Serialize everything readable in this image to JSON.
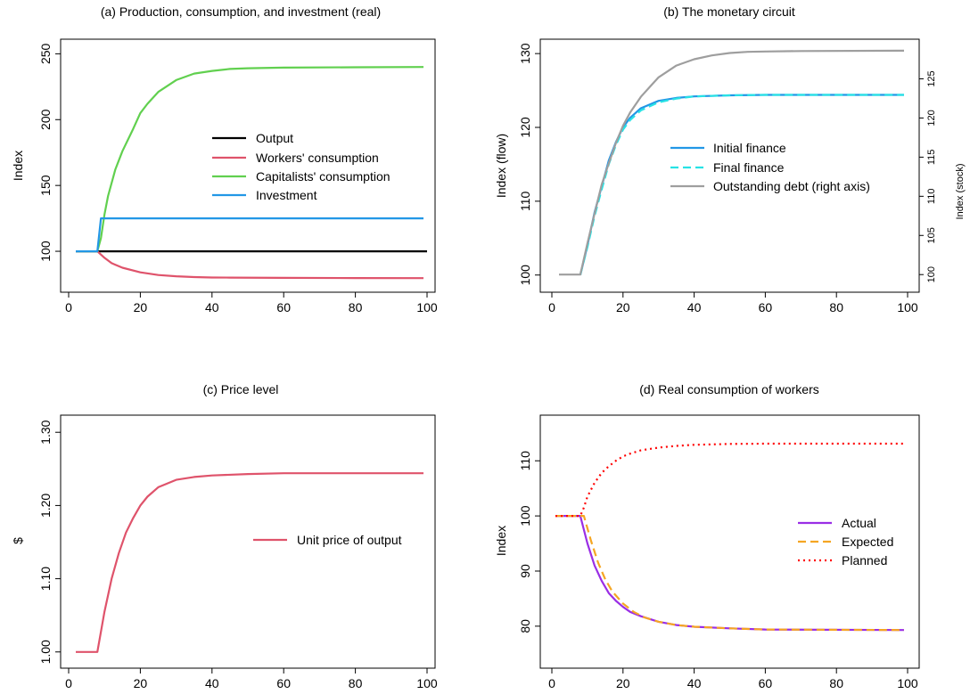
{
  "chart_data": [
    {
      "id": "a",
      "type": "line",
      "title": "(a) Production, consumption, and investment (real)",
      "xlabel": "",
      "ylabel": "Index",
      "xlim": [
        0,
        100
      ],
      "ylim": [
        75,
        255
      ],
      "xticks": [
        0,
        20,
        40,
        60,
        80,
        100
      ],
      "yticks": [
        100,
        150,
        200,
        250
      ],
      "legend_position": "center-right",
      "series": [
        {
          "name": "Output",
          "color": "#000000",
          "dash": "solid",
          "points": [
            [
              2,
              100
            ],
            [
              100,
              100
            ]
          ]
        },
        {
          "name": "Workers' consumption",
          "color": "#df536b",
          "dash": "solid",
          "points": [
            [
              2,
              100
            ],
            [
              8,
              100
            ],
            [
              10,
              95
            ],
            [
              12,
              91
            ],
            [
              15,
              87.5
            ],
            [
              20,
              84
            ],
            [
              25,
              82
            ],
            [
              30,
              81
            ],
            [
              35,
              80.4
            ],
            [
              40,
              80.1
            ],
            [
              45,
              80
            ],
            [
              60,
              79.8
            ],
            [
              80,
              79.7
            ],
            [
              99,
              79.6
            ]
          ]
        },
        {
          "name": "Capitalists' consumption",
          "color": "#61d04f",
          "dash": "solid",
          "points": [
            [
              2,
              100
            ],
            [
              8,
              100
            ],
            [
              9,
              110
            ],
            [
              10,
              128
            ],
            [
              11,
              142
            ],
            [
              13,
              162
            ],
            [
              15,
              176
            ],
            [
              18,
              193
            ],
            [
              20,
              205
            ],
            [
              22,
              212
            ],
            [
              25,
              221
            ],
            [
              30,
              230
            ],
            [
              35,
              235
            ],
            [
              40,
              237
            ],
            [
              45,
              238.5
            ],
            [
              50,
              239
            ],
            [
              60,
              239.5
            ],
            [
              80,
              239.8
            ],
            [
              99,
              240
            ]
          ]
        },
        {
          "name": "Investment",
          "color": "#2297e6",
          "dash": "solid",
          "points": [
            [
              2,
              100
            ],
            [
              8,
              100
            ],
            [
              9,
              125
            ],
            [
              99,
              125
            ]
          ]
        }
      ]
    },
    {
      "id": "b",
      "type": "line",
      "title": "(b) The monetary circuit",
      "xlabel": "",
      "ylabel": "Index (flow)",
      "ylabel_right": "Index (stock)",
      "xlim": [
        0,
        100
      ],
      "ylim": [
        99,
        130.5
      ],
      "ylim_right": [
        99,
        128.7
      ],
      "xticks": [
        0,
        20,
        40,
        60,
        80,
        100
      ],
      "yticks": [
        100,
        110,
        120,
        130
      ],
      "yticks_right": [
        100,
        105,
        110,
        115,
        120,
        125
      ],
      "legend_position": "center-right",
      "series": [
        {
          "name": "Initial finance",
          "color": "#2297e6",
          "dash": "solid",
          "points": [
            [
              8,
              100
            ],
            [
              10,
              104
            ],
            [
              12,
              108.5
            ],
            [
              14,
              112
            ],
            [
              16,
              115.5
            ],
            [
              18,
              118
            ],
            [
              20,
              120
            ],
            [
              22,
              121.3
            ],
            [
              25,
              122.6
            ],
            [
              30,
              123.6
            ],
            [
              35,
              124
            ],
            [
              40,
              124.2
            ],
            [
              50,
              124.35
            ],
            [
              60,
              124.4
            ],
            [
              99,
              124.4
            ]
          ]
        },
        {
          "name": "Final finance",
          "color": "#28e2e5",
          "dash": "dashed",
          "points": [
            [
              8,
              100
            ],
            [
              10,
              103.8
            ],
            [
              12,
              108
            ],
            [
              14,
              111.6
            ],
            [
              16,
              115
            ],
            [
              18,
              117.6
            ],
            [
              20,
              119.7
            ],
            [
              22,
              121
            ],
            [
              25,
              122.3
            ],
            [
              30,
              123.4
            ],
            [
              35,
              123.9
            ],
            [
              40,
              124.2
            ],
            [
              50,
              124.35
            ],
            [
              60,
              124.4
            ],
            [
              99,
              124.4
            ]
          ]
        },
        {
          "name": "Outstanding debt (right axis)",
          "color": "#9e9e9e",
          "dash": "solid",
          "points": [
            [
              2,
              100
            ],
            [
              8,
              100
            ],
            [
              10,
              104
            ],
            [
              12,
              107.8
            ],
            [
              14,
              111.5
            ],
            [
              16,
              114.2
            ],
            [
              18,
              116.8
            ],
            [
              20,
              119
            ],
            [
              22,
              120.7
            ],
            [
              25,
              122.7
            ],
            [
              28,
              124.2
            ],
            [
              30,
              125.2
            ],
            [
              35,
              126.7
            ],
            [
              40,
              127.5
            ],
            [
              45,
              128
            ],
            [
              50,
              128.3
            ],
            [
              55,
              128.45
            ],
            [
              60,
              128.5
            ],
            [
              70,
              128.55
            ],
            [
              99,
              128.6
            ]
          ]
        }
      ]
    },
    {
      "id": "c",
      "type": "line",
      "title": "(c) Price level",
      "xlabel": "",
      "ylabel": "$",
      "xlim": [
        0,
        100
      ],
      "ylim": [
        0.99,
        1.31
      ],
      "xticks": [
        0,
        20,
        40,
        60,
        80,
        100
      ],
      "yticks": [
        1.0,
        1.1,
        1.2,
        1.3
      ],
      "ytick_labels": [
        "1.00",
        "1.10",
        "1.20",
        "1.30"
      ],
      "legend_position": "center-right",
      "series": [
        {
          "name": "Unit price of output",
          "color": "#df536b",
          "dash": "solid",
          "points": [
            [
              2,
              1.0
            ],
            [
              8,
              1.0
            ],
            [
              10,
              1.055
            ],
            [
              12,
              1.1
            ],
            [
              14,
              1.135
            ],
            [
              16,
              1.163
            ],
            [
              18,
              1.183
            ],
            [
              20,
              1.2
            ],
            [
              22,
              1.212
            ],
            [
              25,
              1.225
            ],
            [
              30,
              1.235
            ],
            [
              35,
              1.239
            ],
            [
              40,
              1.241
            ],
            [
              50,
              1.243
            ],
            [
              60,
              1.244
            ],
            [
              99,
              1.244
            ]
          ]
        }
      ]
    },
    {
      "id": "d",
      "type": "line",
      "title": "(d) Real consumption of workers",
      "xlabel": "",
      "ylabel": "Index",
      "xlim": [
        0,
        100
      ],
      "ylim": [
        74,
        116.5
      ],
      "xticks": [
        0,
        20,
        40,
        60,
        80,
        100
      ],
      "yticks": [
        80,
        90,
        100,
        110
      ],
      "legend_position": "center-right",
      "series": [
        {
          "name": "Actual",
          "color": "#9a2ee5",
          "dash": "solid",
          "points": [
            [
              1,
              100
            ],
            [
              8,
              100
            ],
            [
              10,
              95
            ],
            [
              12,
              91
            ],
            [
              14,
              88.2
            ],
            [
              16,
              86
            ],
            [
              18,
              84.6
            ],
            [
              20,
              83.5
            ],
            [
              22,
              82.6
            ],
            [
              25,
              81.8
            ],
            [
              30,
              80.8
            ],
            [
              35,
              80.2
            ],
            [
              40,
              79.9
            ],
            [
              50,
              79.6
            ],
            [
              60,
              79.4
            ],
            [
              99,
              79.3
            ]
          ]
        },
        {
          "name": "Expected",
          "color": "#f5a623",
          "dash": "dashed",
          "points": [
            [
              1,
              100
            ],
            [
              9,
              100
            ],
            [
              11,
              95.5
            ],
            [
              13,
              91.5
            ],
            [
              15,
              88.5
            ],
            [
              17,
              86.3
            ],
            [
              20,
              84.1
            ],
            [
              23,
              82.6
            ],
            [
              26,
              81.6
            ],
            [
              30,
              80.8
            ],
            [
              35,
              80.2
            ],
            [
              40,
              79.9
            ],
            [
              50,
              79.6
            ],
            [
              60,
              79.4
            ],
            [
              99,
              79.3
            ]
          ]
        },
        {
          "name": "Planned",
          "color": "#ff0000",
          "dash": "dotted",
          "points": [
            [
              1,
              100
            ],
            [
              8,
              100
            ],
            [
              9,
              101.5
            ],
            [
              10,
              103.5
            ],
            [
              12,
              106
            ],
            [
              14,
              107.8
            ],
            [
              16,
              109
            ],
            [
              18,
              110
            ],
            [
              20,
              110.8
            ],
            [
              22,
              111.3
            ],
            [
              25,
              111.9
            ],
            [
              30,
              112.4
            ],
            [
              35,
              112.7
            ],
            [
              40,
              112.9
            ],
            [
              50,
              113.05
            ],
            [
              60,
              113.1
            ],
            [
              99,
              113.1
            ]
          ]
        }
      ]
    }
  ]
}
